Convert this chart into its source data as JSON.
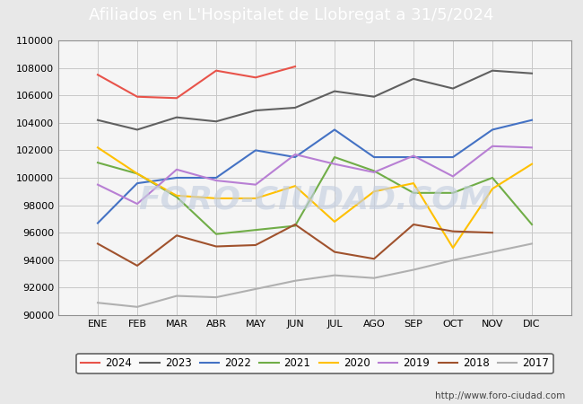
{
  "title": "Afiliados en L'Hospitalet de Llobregat a 31/5/2024",
  "months": [
    "ENE",
    "FEB",
    "MAR",
    "ABR",
    "MAY",
    "JUN",
    "JUL",
    "AGO",
    "SEP",
    "OCT",
    "NOV",
    "DIC"
  ],
  "ylim": [
    90000,
    110000
  ],
  "yticks": [
    90000,
    92000,
    94000,
    96000,
    98000,
    100000,
    102000,
    104000,
    106000,
    108000,
    110000
  ],
  "series": {
    "2024": {
      "color": "#e8534a",
      "data": [
        107500,
        105900,
        105800,
        107800,
        107300,
        108100,
        null,
        null,
        null,
        null,
        null,
        null
      ]
    },
    "2023": {
      "color": "#606060",
      "data": [
        104200,
        103500,
        104400,
        104100,
        104900,
        105100,
        106300,
        105900,
        107200,
        106500,
        107800,
        107600
      ]
    },
    "2022": {
      "color": "#4472c4",
      "data": [
        96700,
        99600,
        100000,
        100000,
        102000,
        101500,
        103500,
        101500,
        101500,
        101500,
        103500,
        104200
      ]
    },
    "2021": {
      "color": "#70ad47",
      "data": [
        101100,
        100300,
        98600,
        95900,
        96200,
        96500,
        101500,
        100500,
        98900,
        98900,
        100000,
        96600
      ]
    },
    "2020": {
      "color": "#ffc000",
      "data": [
        102200,
        100300,
        98700,
        98500,
        98500,
        99400,
        96800,
        99000,
        99600,
        94900,
        99200,
        101000
      ]
    },
    "2019": {
      "color": "#b87fd4",
      "data": [
        99500,
        98100,
        100600,
        99800,
        99500,
        101700,
        101000,
        100400,
        101600,
        100100,
        102300,
        102200
      ]
    },
    "2018": {
      "color": "#a0522d",
      "data": [
        95200,
        93600,
        95800,
        95000,
        95100,
        96600,
        94600,
        94100,
        96600,
        96100,
        96000,
        null
      ]
    },
    "2017": {
      "color": "#b0b0b0",
      "data": [
        90900,
        90600,
        91400,
        91300,
        91900,
        92500,
        92900,
        92700,
        93300,
        94000,
        null,
        95200
      ]
    }
  },
  "title_bg_color": "#5b9bd5",
  "title_color": "white",
  "title_fontsize": 13,
  "watermark_text": "FORO-CIUDAD.COM",
  "watermark_url": "http://www.foro-ciudad.com",
  "grid_color": "#c8c8c8",
  "background_color": "#e8e8e8",
  "plot_bg_color": "#f5f5f5"
}
